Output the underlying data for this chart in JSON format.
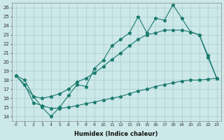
{
  "xlabel": "Humidex (Indice chaleur)",
  "background_color": "#cce8e8",
  "grid_color": "#aacccc",
  "line_color": "#1a7a6e",
  "xlim": [
    -0.5,
    23.5
  ],
  "ylim": [
    13.5,
    26.5
  ],
  "yticks": [
    14,
    15,
    16,
    17,
    18,
    19,
    20,
    21,
    22,
    23,
    24,
    25,
    26
  ],
  "xticks": [
    0,
    1,
    2,
    3,
    4,
    5,
    6,
    7,
    8,
    9,
    10,
    11,
    12,
    13,
    14,
    15,
    16,
    17,
    18,
    19,
    20,
    21,
    22,
    23
  ],
  "line1_x": [
    0,
    1,
    2,
    3,
    4,
    5,
    6,
    7,
    8,
    9,
    10,
    11,
    12,
    13,
    14,
    15,
    16,
    17,
    18,
    19,
    20,
    21,
    22,
    23
  ],
  "line1_y": [
    18.5,
    18.0,
    16.2,
    15.0,
    14.0,
    15.0,
    16.3,
    17.5,
    17.3,
    19.3,
    20.2,
    21.8,
    22.5,
    23.2,
    25.0,
    23.2,
    24.8,
    24.6,
    26.3,
    24.8,
    23.3,
    23.0,
    20.7,
    18.2
  ],
  "line2_x": [
    0,
    2,
    3,
    4,
    5,
    6,
    7,
    8,
    9,
    10,
    11,
    12,
    13,
    14,
    15,
    16,
    17,
    18,
    19,
    20,
    21,
    22,
    23
  ],
  "line2_y": [
    18.5,
    16.2,
    16.0,
    16.2,
    16.5,
    17.0,
    17.8,
    18.2,
    18.8,
    19.5,
    20.3,
    21.0,
    21.8,
    22.5,
    23.0,
    23.2,
    23.5,
    23.5,
    23.5,
    23.3,
    23.0,
    20.5,
    18.2
  ],
  "line3_x": [
    0,
    1,
    2,
    3,
    4,
    5,
    6,
    7,
    8,
    9,
    10,
    11,
    12,
    13,
    14,
    15,
    16,
    17,
    18,
    19,
    20,
    21,
    22,
    23
  ],
  "line3_y": [
    18.5,
    17.5,
    15.5,
    15.2,
    14.9,
    14.9,
    15.0,
    15.2,
    15.4,
    15.6,
    15.8,
    16.0,
    16.2,
    16.5,
    16.8,
    17.0,
    17.3,
    17.5,
    17.7,
    17.9,
    18.0,
    18.0,
    18.1,
    18.2
  ]
}
